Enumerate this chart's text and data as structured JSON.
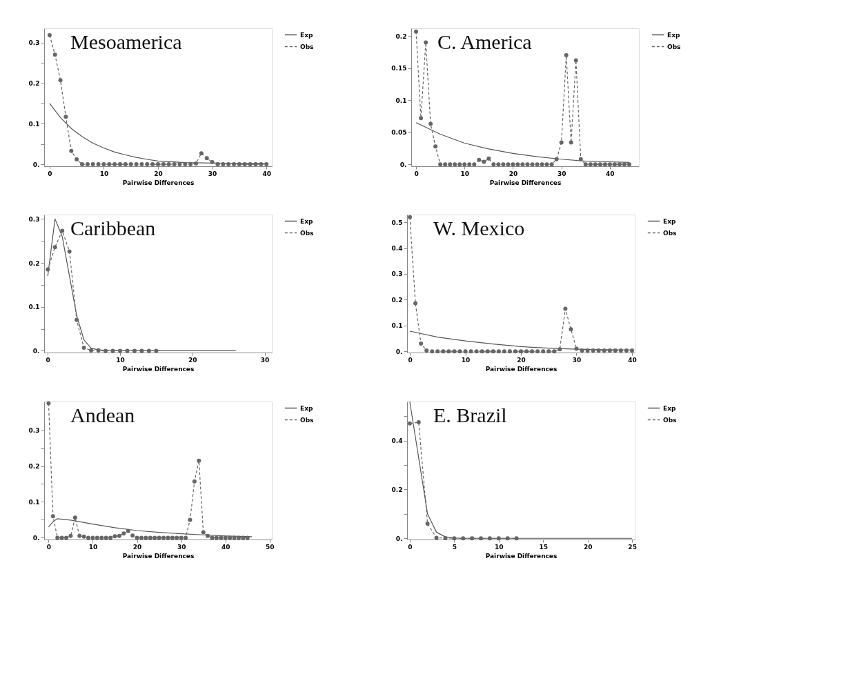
{
  "chart_data": [
    {
      "type": "line",
      "title": "Mesoamerica",
      "xlabel": "Pairwise Differences",
      "xlim": [
        -1,
        41
      ],
      "xticks": [
        0,
        10,
        20,
        30,
        40
      ],
      "ylim": [
        -0.005,
        0.335
      ],
      "yticks": [
        {
          "value": 0,
          "label": "0."
        },
        {
          "value": 0.05,
          "label": null
        },
        0.1,
        {
          "value": 0.15,
          "label": null
        },
        0.2,
        {
          "value": 0.25,
          "label": null
        },
        0.3
      ],
      "grid": false,
      "legend": "right",
      "series": [
        {
          "name": "Exp",
          "color": "#555555",
          "line_style": "solid",
          "marker": "none",
          "x": [
            0,
            2,
            4,
            6,
            8,
            10,
            12,
            14,
            16,
            18,
            20,
            25,
            30,
            35,
            40
          ],
          "values": [
            0.15,
            0.115,
            0.088,
            0.068,
            0.052,
            0.04,
            0.03,
            0.023,
            0.017,
            0.012,
            0.008,
            0.004,
            0.003,
            0.002,
            0.002
          ]
        },
        {
          "name": "Obs",
          "color": "#666666",
          "line_style": "dashed",
          "marker": "circle",
          "x": [
            0,
            1,
            2,
            3,
            4,
            5,
            6,
            7,
            8,
            9,
            10,
            11,
            12,
            13,
            14,
            15,
            16,
            17,
            18,
            19,
            20,
            21,
            22,
            23,
            24,
            25,
            26,
            27,
            28,
            29,
            30,
            31,
            32,
            33,
            34,
            35,
            36,
            37,
            38,
            39,
            40
          ],
          "values": [
            0.318,
            0.27,
            0.207,
            0.117,
            0.033,
            0.012,
            0,
            0,
            0,
            0,
            0,
            0,
            0,
            0,
            0,
            0,
            0,
            0,
            0,
            0,
            0,
            0,
            0,
            0,
            0,
            0,
            0,
            0.002,
            0.027,
            0.015,
            0.005,
            0,
            0,
            0,
            0,
            0,
            0,
            0,
            0,
            0,
            0
          ]
        }
      ]
    },
    {
      "type": "line",
      "title": "C. America",
      "xlabel": "Pairwise Differences",
      "xlim": [
        -1,
        46
      ],
      "xticks": [
        0,
        10,
        20,
        30,
        40
      ],
      "ylim": [
        -0.003,
        0.212
      ],
      "yticks": [
        {
          "value": 0,
          "label": "0."
        },
        0.05,
        0.1,
        0.15,
        0.2
      ],
      "grid": false,
      "legend": "right",
      "series": [
        {
          "name": "Exp",
          "color": "#555555",
          "line_style": "solid",
          "marker": "none",
          "x": [
            0,
            5,
            10,
            15,
            20,
            25,
            30,
            35,
            40,
            44
          ],
          "values": [
            0.065,
            0.047,
            0.033,
            0.024,
            0.017,
            0.012,
            0.008,
            0.005,
            0.004,
            0.003
          ]
        },
        {
          "name": "Obs",
          "color": "#666666",
          "line_style": "dashed",
          "marker": "circle",
          "x": [
            0,
            1,
            2,
            3,
            4,
            5,
            6,
            7,
            8,
            9,
            10,
            11,
            12,
            13,
            14,
            15,
            16,
            17,
            18,
            19,
            20,
            21,
            22,
            23,
            24,
            25,
            26,
            27,
            28,
            29,
            30,
            31,
            32,
            33,
            34,
            35,
            36,
            37,
            38,
            39,
            40,
            41,
            42,
            43,
            44
          ],
          "values": [
            0.207,
            0.072,
            0.19,
            0.063,
            0.028,
            0,
            0,
            0,
            0,
            0,
            0,
            0,
            0,
            0.007,
            0.004,
            0.009,
            0,
            0,
            0,
            0,
            0,
            0,
            0,
            0,
            0,
            0,
            0,
            0,
            0,
            0.008,
            0.034,
            0.17,
            0.034,
            0.162,
            0.008,
            0,
            0,
            0,
            0,
            0,
            0,
            0,
            0,
            0,
            0
          ]
        }
      ]
    },
    {
      "type": "line",
      "title": "Caribbean",
      "xlabel": "Pairwise Differences",
      "xlim": [
        -0.5,
        31
      ],
      "xticks": [
        0,
        10,
        20,
        30
      ],
      "ylim": [
        -0.004,
        0.31
      ],
      "yticks": [
        {
          "value": 0,
          "label": "0."
        },
        {
          "value": 0.05,
          "label": null
        },
        0.1,
        {
          "value": 0.15,
          "label": null
        },
        0.2,
        {
          "value": 0.25,
          "label": null
        },
        0.3
      ],
      "grid": false,
      "legend": "right",
      "series": [
        {
          "name": "Exp",
          "color": "#555555",
          "line_style": "solid",
          "marker": "none",
          "x": [
            0,
            1,
            2,
            3,
            4,
            5,
            6,
            7,
            8,
            10,
            26
          ],
          "values": [
            0.17,
            0.3,
            0.26,
            0.17,
            0.08,
            0.025,
            0.006,
            0.002,
            0.001,
            0,
            0
          ]
        },
        {
          "name": "Obs",
          "color": "#666666",
          "line_style": "dashed",
          "marker": "circle",
          "x": [
            0,
            1,
            2,
            3,
            4,
            5,
            6,
            7,
            8,
            9,
            10,
            11,
            12,
            13,
            14,
            15
          ],
          "values": [
            0.185,
            0.236,
            0.273,
            0.226,
            0.07,
            0.007,
            0.001,
            0.001,
            0,
            0,
            0,
            0,
            0,
            0,
            0,
            0
          ]
        }
      ]
    },
    {
      "type": "line",
      "title": "W. Mexico",
      "xlabel": "Pairwise Differences",
      "xlim": [
        -0.5,
        40.5
      ],
      "xticks": [
        0,
        10,
        20,
        30,
        40
      ],
      "ylim": [
        -0.005,
        0.53
      ],
      "yticks": [
        {
          "value": 0,
          "label": "0."
        },
        0.1,
        0.2,
        0.3,
        0.4,
        0.5
      ],
      "grid": false,
      "legend": "right",
      "series": [
        {
          "name": "Exp",
          "color": "#555555",
          "line_style": "solid",
          "marker": "none",
          "x": [
            0,
            5,
            10,
            15,
            20,
            25,
            30,
            35,
            40
          ],
          "values": [
            0.078,
            0.055,
            0.04,
            0.028,
            0.018,
            0.012,
            0.008,
            0.006,
            0.005
          ]
        },
        {
          "name": "Obs",
          "color": "#666666",
          "line_style": "dashed",
          "marker": "circle",
          "x": [
            0,
            1,
            2,
            3,
            4,
            5,
            6,
            7,
            8,
            9,
            10,
            11,
            12,
            13,
            14,
            15,
            16,
            17,
            18,
            19,
            20,
            21,
            22,
            23,
            24,
            25,
            26,
            27,
            28,
            29,
            30,
            31,
            32,
            33,
            34,
            35,
            36,
            37,
            38,
            39,
            40
          ],
          "values": [
            0.52,
            0.186,
            0.03,
            0.003,
            0,
            0,
            0,
            0,
            0,
            0,
            0,
            0,
            0,
            0,
            0,
            0,
            0,
            0,
            0,
            0,
            0,
            0,
            0,
            0,
            0,
            0,
            0,
            0.008,
            0.165,
            0.085,
            0.01,
            0.003,
            0.003,
            0.003,
            0.003,
            0.003,
            0.003,
            0.003,
            0.003,
            0.003,
            0.003
          ]
        }
      ]
    },
    {
      "type": "line",
      "title": "Andean",
      "xlabel": "Pairwise Differences",
      "xlim": [
        -1,
        50.5
      ],
      "xticks": [
        0,
        10,
        20,
        30,
        40,
        50
      ],
      "ylim": [
        -0.005,
        0.38
      ],
      "yticks": [
        {
          "value": 0,
          "label": "0."
        },
        {
          "value": 0.05,
          "label": null
        },
        0.1,
        {
          "value": 0.15,
          "label": null
        },
        0.2,
        {
          "value": 0.25,
          "label": null
        },
        0.3
      ],
      "grid": false,
      "legend": "right",
      "series": [
        {
          "name": "Exp",
          "color": "#555555",
          "line_style": "solid",
          "marker": "none",
          "x": [
            0,
            1,
            2,
            5,
            10,
            15,
            20,
            25,
            30,
            35,
            40,
            46
          ],
          "values": [
            0.03,
            0.045,
            0.053,
            0.049,
            0.038,
            0.028,
            0.02,
            0.015,
            0.011,
            0.008,
            0.005,
            0.003
          ]
        },
        {
          "name": "Obs",
          "color": "#666666",
          "line_style": "dashed",
          "marker": "circle",
          "x": [
            0,
            1,
            2,
            3,
            4,
            5,
            6,
            7,
            8,
            9,
            10,
            11,
            12,
            13,
            14,
            15,
            16,
            17,
            18,
            19,
            20,
            21,
            22,
            23,
            24,
            25,
            26,
            27,
            28,
            29,
            30,
            31,
            32,
            33,
            34,
            35,
            36,
            37,
            38,
            39,
            40,
            41,
            42,
            43,
            44,
            45
          ],
          "values": [
            0.375,
            0.06,
            0,
            0,
            0,
            0.005,
            0.056,
            0.005,
            0.003,
            0,
            0,
            0,
            0,
            0,
            0,
            0.004,
            0.005,
            0.012,
            0.019,
            0.006,
            0,
            0,
            0,
            0,
            0,
            0,
            0,
            0,
            0,
            0,
            0,
            0,
            0.05,
            0.157,
            0.215,
            0.015,
            0.005,
            0,
            0,
            0,
            0,
            0,
            0,
            0,
            0,
            0
          ]
        }
      ]
    },
    {
      "type": "line",
      "title": "E. Brazil",
      "xlabel": "Pairwise Differences",
      "xlim": [
        -0.3,
        25.3
      ],
      "xticks": [
        0,
        5,
        10,
        15,
        20,
        25
      ],
      "ylim": [
        -0.005,
        0.56
      ],
      "yticks": [
        {
          "value": 0,
          "label": "0."
        },
        {
          "value": 0.1,
          "label": null
        },
        0.2,
        {
          "value": 0.3,
          "label": null
        },
        0.4,
        {
          "value": 0.5,
          "label": null
        }
      ],
      "grid": false,
      "legend": "right",
      "series": [
        {
          "name": "Exp",
          "color": "#555555",
          "line_style": "solid",
          "marker": "none",
          "x": [
            0,
            1,
            2,
            3,
            4,
            5,
            6,
            25
          ],
          "values": [
            0.56,
            0.33,
            0.1,
            0.025,
            0.006,
            0.001,
            0,
            0
          ]
        },
        {
          "name": "Obs",
          "color": "#666666",
          "line_style": "dashed",
          "marker": "circle",
          "x": [
            0,
            1,
            2,
            3,
            4,
            5,
            6,
            7,
            8,
            9,
            10,
            11,
            12
          ],
          "values": [
            0.47,
            0.475,
            0.06,
            0.002,
            0.001,
            0,
            0,
            0,
            0,
            0,
            0,
            0,
            0
          ]
        }
      ]
    }
  ]
}
